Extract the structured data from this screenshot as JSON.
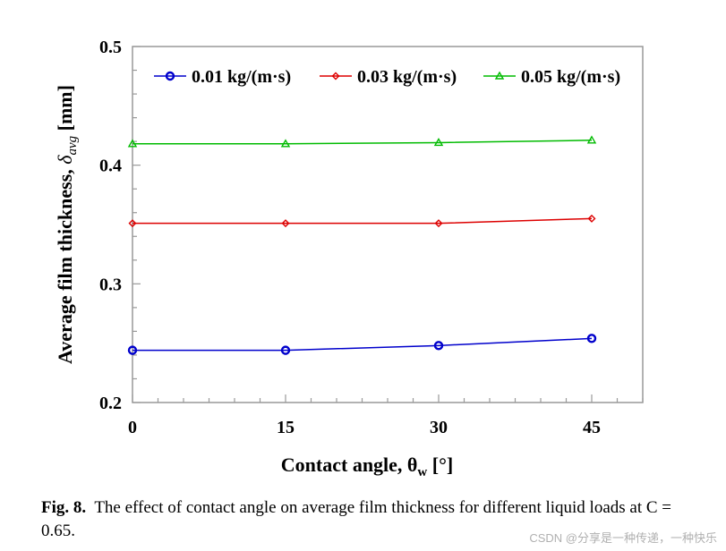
{
  "chart_data": {
    "type": "line",
    "x": [
      0,
      15,
      30,
      45
    ],
    "xticks": [
      "0",
      "15",
      "30",
      "45"
    ],
    "yticks": [
      "0.2",
      "0.3",
      "0.4",
      "0.5"
    ],
    "xlim": [
      0,
      50
    ],
    "ylim": [
      0.2,
      0.5
    ],
    "series": [
      {
        "name": "0.01 kg/(m·s)",
        "color": "#0000cc",
        "marker": "circle",
        "values": [
          0.244,
          0.244,
          0.248,
          0.254
        ]
      },
      {
        "name": "0.03 kg/(m·s)",
        "color": "#dd0000",
        "marker": "diamond",
        "values": [
          0.351,
          0.351,
          0.351,
          0.355
        ]
      },
      {
        "name": "0.05 kg/(m·s)",
        "color": "#00bb00",
        "marker": "triangle",
        "values": [
          0.418,
          0.418,
          0.419,
          0.421
        ]
      }
    ],
    "xlabel_main": "Contact angle, θ",
    "xlabel_sub": "w",
    "xlabel_unit": " [°]",
    "ylabel_main": "Average film thickness, ",
    "ylabel_sym": "δ",
    "ylabel_sub": "avg",
    "ylabel_unit": " [mm]",
    "legend_position": "top"
  },
  "caption": {
    "label": "Fig. 8.",
    "text": "The effect of contact angle on average film thickness for different liquid loads at C = 0.65."
  },
  "watermark": "CSDN @分享是一种传递，一种快乐"
}
